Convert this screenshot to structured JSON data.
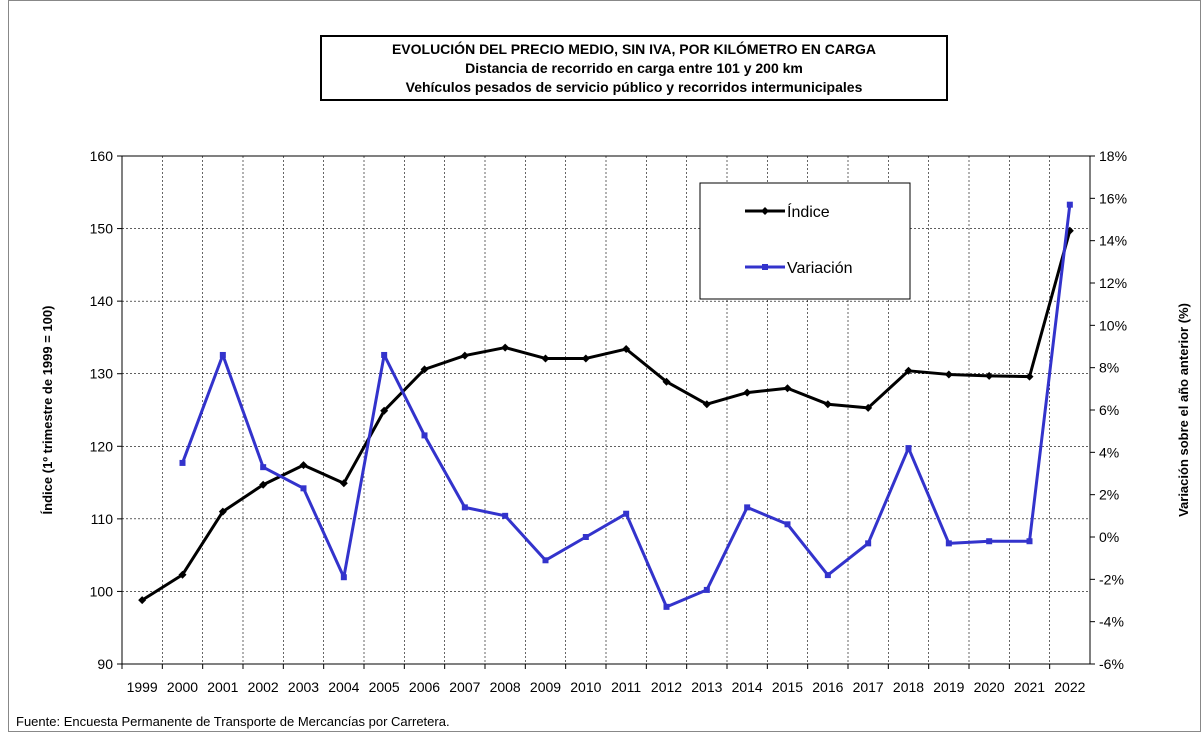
{
  "chart_data": {
    "type": "line",
    "title": "EVOLUCIÓN  DEL PRECIO MEDIO, SIN IVA, POR KILÓMETRO  EN CARGA",
    "subtitle": [
      "Distancia de recorrido en carga entre 101 y 200 km",
      "Vehículos pesados de servicio público y recorridos intermunicipales"
    ],
    "ylabel": "Índice (1º trimestre de 1999 = 100)",
    "y2label": "Variación sobre el año anterior (%)",
    "xlabel": "",
    "categories": [
      "1999",
      "2000",
      "2001",
      "2002",
      "2003",
      "2004",
      "2005",
      "2006",
      "2007",
      "2008",
      "2009",
      "2010",
      "2011",
      "2012",
      "2013",
      "2014",
      "2015",
      "2016",
      "2017",
      "2018",
      "2019",
      "2020",
      "2021",
      "2022"
    ],
    "ylim": [
      90,
      160
    ],
    "yticks": [
      "90",
      "100",
      "110",
      "120",
      "130",
      "140",
      "150",
      "160"
    ],
    "y2lim": [
      -6,
      18
    ],
    "y2ticks": [
      "-6%",
      "-4%",
      "-2%",
      "0%",
      "2%",
      "4%",
      "6%",
      "8%",
      "10%",
      "12%",
      "14%",
      "16%",
      "18%"
    ],
    "grid": true,
    "legend_position": "top-right",
    "series": [
      {
        "name": "Índice",
        "axis": "left",
        "color": "#000000",
        "x": [
          "1999",
          "2000",
          "2001",
          "2002",
          "2003",
          "2004",
          "2005",
          "2006",
          "2007",
          "2008",
          "2009",
          "2010",
          "2011",
          "2012",
          "2013",
          "2014",
          "2015",
          "2016",
          "2017",
          "2018",
          "2019",
          "2020",
          "2021",
          "2022"
        ],
        "values": [
          98.8,
          102.3,
          111.0,
          114.7,
          117.4,
          114.9,
          124.9,
          130.6,
          132.5,
          133.6,
          132.1,
          132.1,
          133.4,
          128.9,
          125.8,
          127.4,
          128.0,
          125.8,
          125.3,
          130.4,
          129.9,
          129.7,
          129.6,
          149.7
        ]
      },
      {
        "name": "Variación",
        "axis": "right",
        "color": "#3333cc",
        "x": [
          "2000",
          "2001",
          "2002",
          "2003",
          "2004",
          "2005",
          "2006",
          "2007",
          "2008",
          "2009",
          "2010",
          "2011",
          "2012",
          "2013",
          "2014",
          "2015",
          "2016",
          "2017",
          "2018",
          "2019",
          "2020",
          "2021",
          "2022"
        ],
        "values": [
          3.5,
          8.6,
          3.3,
          2.3,
          -1.9,
          8.6,
          4.8,
          1.4,
          1.0,
          -1.1,
          0.0,
          1.1,
          -3.3,
          -2.5,
          1.4,
          0.6,
          -1.8,
          -0.3,
          4.2,
          -0.3,
          -0.2,
          -0.2,
          15.7
        ]
      }
    ]
  },
  "source": "Fuente: Encuesta Permanente de Transporte de Mercancías por Carretera."
}
